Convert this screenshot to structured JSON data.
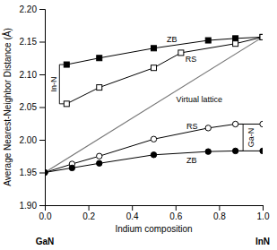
{
  "chart_data": {
    "type": "line",
    "xlabel": "Indium composition",
    "ylabel": "Average Nearest-Neighbor Distance (Å)",
    "xlim": [
      0.0,
      1.0
    ],
    "ylim": [
      1.9,
      2.2
    ],
    "xticks": [
      {
        "value": 0.0,
        "label": "0.0"
      },
      0.2,
      0.4,
      0.6,
      0.8,
      {
        "value": 1.0,
        "label": "1.0"
      }
    ],
    "yticks": [
      {
        "value": 1.9,
        "label": "1.90"
      },
      1.95,
      {
        "value": 2.0,
        "label": "2.00"
      },
      2.05,
      {
        "value": 2.1,
        "label": "2.10"
      },
      2.15,
      {
        "value": 2.2,
        "label": "2.20"
      }
    ],
    "grid": false,
    "series": [
      {
        "color": "#777777",
        "marker": "none",
        "x": [
          0.0,
          1.0
        ],
        "values": [
          1.95,
          2.157
        ]
      },
      {
        "color": "#000000",
        "marker": "square",
        "x": [
          0.1,
          0.25,
          0.5,
          0.75,
          0.875,
          1.0
        ],
        "values": [
          2.115,
          2.125,
          2.14,
          2.152,
          2.155,
          2.157
        ]
      },
      {
        "color": "#000000",
        "marker": "square-open",
        "x": [
          0.1,
          0.25,
          0.5,
          0.625,
          0.875,
          1.0
        ],
        "values": [
          2.055,
          2.08,
          2.11,
          2.133,
          2.147,
          2.157
        ]
      },
      {
        "color": "#000000",
        "marker": "circle-open",
        "x": [
          0.0,
          0.125,
          0.25,
          0.5,
          0.75,
          0.875,
          1.0
        ],
        "values": [
          1.95,
          1.963,
          1.975,
          2.001,
          2.018,
          2.024,
          2.024
        ]
      },
      {
        "color": "#000000",
        "marker": "circle",
        "x": [
          0.0,
          0.125,
          0.25,
          0.5,
          0.75,
          0.875,
          1.0
        ],
        "values": [
          1.95,
          1.957,
          1.964,
          1.977,
          1.982,
          1.983,
          1.983
        ]
      }
    ],
    "annotations": [
      "GaN",
      "InN",
      "In-N",
      "ZB",
      "RS",
      "Virtual lattice",
      "Ga-N",
      "RS",
      "ZB"
    ]
  }
}
